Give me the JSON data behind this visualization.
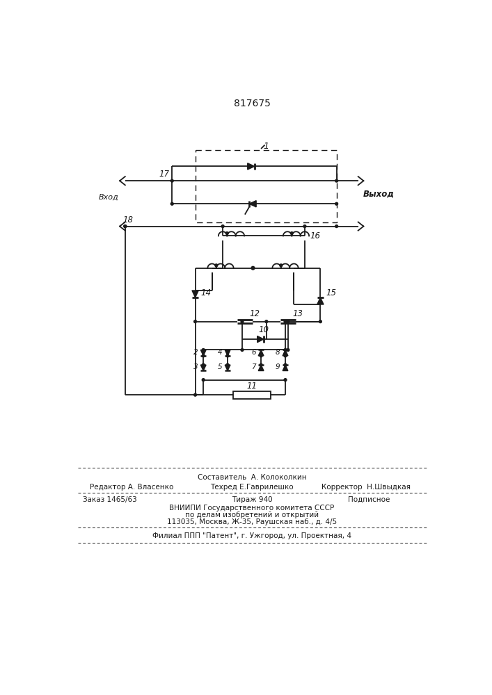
{
  "title": "817675",
  "title_fontsize": 10,
  "bg_color": "#ffffff",
  "line_color": "#1a1a1a",
  "text_color": "#1a1a1a",
  "label_vhod": "Вход",
  "label_vyhod": "Выход",
  "footer": {
    "line1": "Составитель  А. Колоколкин",
    "line2_left": "Редактор А. Власенко",
    "line2_mid": "Техред Е.Гаврилешко",
    "line2_right": "Корректор  Н.Швыдкая",
    "line3_left": "Заказ 1465/63",
    "line3_mid": "Тираж 940",
    "line3_right": "Подписное",
    "line4": "ВНИИПИ Государственного комитета СССР",
    "line5": "по делам изобретений и открытий",
    "line6": "113035, Москва, Ж-35, Раушская наб., д. 4/5",
    "line7": "Филиал ППП \"Патент\", г. Ужгород, ул. Проектная, 4"
  }
}
